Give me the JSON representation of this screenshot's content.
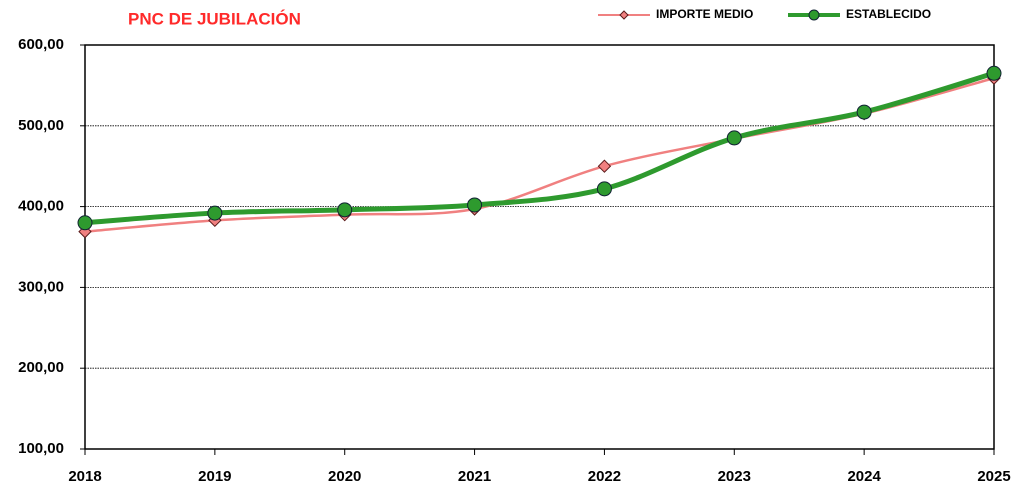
{
  "chart_data": {
    "type": "line",
    "title": "PNC DE JUBILACIÓN",
    "categories": [
      "2018",
      "2019",
      "2020",
      "2021",
      "2022",
      "2023",
      "2024",
      "2025"
    ],
    "series": [
      {
        "name": "IMPORTE MEDIO",
        "color": "#f08080",
        "marker": "diamond",
        "values": [
          369,
          383,
          390,
          397,
          450,
          484,
          515,
          559
        ]
      },
      {
        "name": "ESTABLECIDO",
        "color": "#2e9a2e",
        "marker": "circle",
        "values": [
          380,
          392,
          396,
          402,
          422,
          485,
          517,
          565
        ]
      }
    ],
    "ylim": [
      100,
      600
    ],
    "yticks": [
      {
        "value": 100,
        "label": "100,00"
      },
      {
        "value": 200,
        "label": "200,00"
      },
      {
        "value": 300,
        "label": "300,00"
      },
      {
        "value": 400,
        "label": "400,00"
      },
      {
        "value": 500,
        "label": "500,00"
      },
      {
        "value": 600,
        "label": "600,00"
      }
    ],
    "grid": true,
    "legend": "top-right"
  }
}
